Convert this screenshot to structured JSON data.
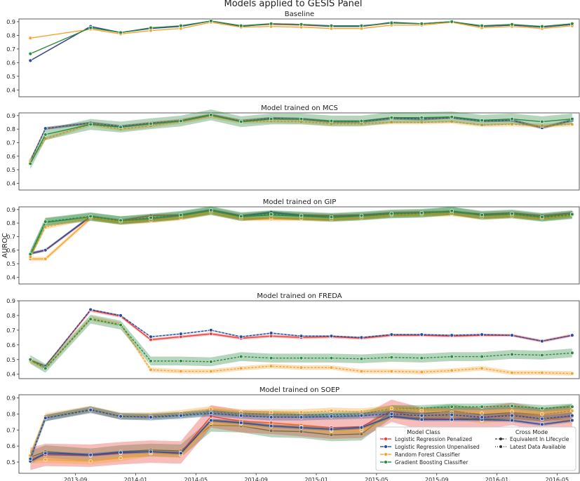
{
  "figure": {
    "title": "Models applied to GESIS Panel",
    "ylabel": "AUROC",
    "x_ticks": [
      "2013-09",
      "2014-01",
      "2014-05",
      "2014-09",
      "2015-01",
      "2015-05",
      "2015-09",
      "2016-01",
      "2016-05"
    ],
    "y_ticks": [
      "0.4",
      "0.5",
      "0.6",
      "0.7",
      "0.8",
      "0.9"
    ]
  },
  "legend": {
    "model_class_title": "Model Class",
    "cross_mode_title": "Cross Mode",
    "model_classes": [
      {
        "name": "Logistic Regression Penalized",
        "color": "#e8413c"
      },
      {
        "name": "Logistic Regression Unpenalised",
        "color": "#2a4d9b"
      },
      {
        "name": "Random Forest Classifier",
        "color": "#f5a331"
      },
      {
        "name": "Gradient Boosting Classifier",
        "color": "#2a8a3e"
      }
    ],
    "cross_modes": [
      "Equivalent In Lifecycle",
      "Latest Data Available"
    ]
  },
  "chart_data": [
    {
      "type": "line",
      "title": "Baseline",
      "ylim": [
        0.35,
        0.92
      ],
      "x": [
        "2013-06",
        "2013-10",
        "2013-12",
        "2014-02",
        "2014-04",
        "2014-06",
        "2014-08",
        "2014-10",
        "2014-12",
        "2015-02",
        "2015-04",
        "2015-06",
        "2015-08",
        "2015-10",
        "2015-12",
        "2016-02",
        "2016-04",
        "2016-06"
      ],
      "series": [
        {
          "model": "Logistic Regression Penalized",
          "mode": "solid",
          "values": [
            0.615,
            0.865,
            0.82,
            0.855,
            0.865,
            0.905,
            0.87,
            0.88,
            0.875,
            0.865,
            0.865,
            0.89,
            0.885,
            0.9,
            0.865,
            0.875,
            0.86,
            0.88
          ],
          "band": 0
        },
        {
          "model": "Logistic Regression Unpenalised",
          "mode": "solid",
          "values": [
            0.615,
            0.865,
            0.82,
            0.85,
            0.865,
            0.905,
            0.865,
            0.885,
            0.88,
            0.865,
            0.865,
            0.895,
            0.885,
            0.9,
            0.865,
            0.875,
            0.86,
            0.88
          ],
          "band": 0
        },
        {
          "model": "Random Forest Classifier",
          "mode": "solid",
          "values": [
            0.78,
            0.845,
            0.81,
            0.835,
            0.85,
            0.895,
            0.86,
            0.865,
            0.86,
            0.85,
            0.85,
            0.875,
            0.875,
            0.895,
            0.855,
            0.865,
            0.85,
            0.87
          ],
          "band": 0
        },
        {
          "model": "Gradient Boosting Classifier",
          "mode": "solid",
          "values": [
            0.665,
            0.855,
            0.82,
            0.855,
            0.87,
            0.905,
            0.87,
            0.885,
            0.88,
            0.87,
            0.87,
            0.89,
            0.885,
            0.9,
            0.87,
            0.88,
            0.865,
            0.885
          ],
          "band": 0
        }
      ]
    },
    {
      "type": "line",
      "title": "Model trained on MCS",
      "ylim": [
        0.35,
        0.92
      ],
      "x": [
        "2013-06",
        "2013-07",
        "2013-10",
        "2013-12",
        "2014-02",
        "2014-04",
        "2014-06",
        "2014-08",
        "2014-10",
        "2014-12",
        "2015-02",
        "2015-04",
        "2015-06",
        "2015-08",
        "2015-10",
        "2015-12",
        "2016-02",
        "2016-04",
        "2016-06"
      ],
      "series": [
        {
          "model": "Logistic Regression Penalized",
          "mode": "dashed",
          "values": [
            0.57,
            0.805,
            0.845,
            0.82,
            0.845,
            0.865,
            0.905,
            0.86,
            0.88,
            0.875,
            0.855,
            0.855,
            0.88,
            0.875,
            0.885,
            0.86,
            0.865,
            0.81,
            0.865
          ],
          "band": 0.01
        },
        {
          "model": "Logistic Regression Unpenalised",
          "mode": "dashed",
          "values": [
            0.565,
            0.805,
            0.845,
            0.82,
            0.84,
            0.86,
            0.905,
            0.86,
            0.88,
            0.875,
            0.855,
            0.855,
            0.88,
            0.875,
            0.885,
            0.86,
            0.865,
            0.81,
            0.865
          ],
          "band": 0.01
        },
        {
          "model": "Random Forest Classifier",
          "mode": "dashed",
          "values": [
            0.56,
            0.73,
            0.835,
            0.8,
            0.825,
            0.855,
            0.895,
            0.855,
            0.86,
            0.855,
            0.84,
            0.84,
            0.85,
            0.85,
            0.855,
            0.83,
            0.835,
            0.825,
            0.835
          ],
          "band": 0.015
        },
        {
          "model": "Gradient Boosting Classifier",
          "mode": "solid",
          "values": [
            0.545,
            0.76,
            0.835,
            0.815,
            0.84,
            0.86,
            0.905,
            0.855,
            0.875,
            0.875,
            0.86,
            0.86,
            0.885,
            0.885,
            0.89,
            0.865,
            0.875,
            0.855,
            0.875
          ],
          "band": 0.04
        }
      ]
    },
    {
      "type": "line",
      "title": "Model trained on GIP",
      "ylim": [
        0.35,
        0.92
      ],
      "x": [
        "2013-06",
        "2013-07",
        "2013-10",
        "2013-12",
        "2014-02",
        "2014-04",
        "2014-06",
        "2014-08",
        "2014-10",
        "2014-12",
        "2015-02",
        "2015-04",
        "2015-06",
        "2015-08",
        "2015-10",
        "2015-12",
        "2016-02",
        "2016-04",
        "2016-06"
      ],
      "series": [
        {
          "model": "Logistic Regression Penalized",
          "mode": "solid",
          "values": [
            0.575,
            0.6,
            0.845,
            0.82,
            0.855,
            0.86,
            0.895,
            0.855,
            0.875,
            0.86,
            0.855,
            0.86,
            0.875,
            0.88,
            0.885,
            0.865,
            0.875,
            0.855,
            0.875
          ],
          "band": 0.01
        },
        {
          "model": "Logistic Regression Unpenalised",
          "mode": "solid",
          "values": [
            0.575,
            0.6,
            0.85,
            0.815,
            0.83,
            0.855,
            0.895,
            0.85,
            0.88,
            0.855,
            0.845,
            0.855,
            0.87,
            0.875,
            0.88,
            0.86,
            0.865,
            0.845,
            0.87
          ],
          "band": 0.01
        },
        {
          "model": "Random Forest Classifier",
          "mode": "solid",
          "values": [
            0.535,
            0.535,
            0.835,
            0.8,
            0.815,
            0.835,
            0.875,
            0.83,
            0.83,
            0.83,
            0.825,
            0.835,
            0.855,
            0.86,
            0.865,
            0.84,
            0.85,
            0.83,
            0.855
          ],
          "band": 0.015
        },
        {
          "model": "Gradient Boosting Classifier",
          "mode": "solid",
          "values": [
            0.565,
            0.805,
            0.845,
            0.82,
            0.835,
            0.855,
            0.89,
            0.845,
            0.86,
            0.85,
            0.84,
            0.85,
            0.865,
            0.87,
            0.89,
            0.855,
            0.865,
            0.84,
            0.86
          ],
          "band": 0.03
        },
        {
          "model": "Random Forest Classifier",
          "mode": "dashed",
          "values": [
            0.55,
            0.77,
            0.84,
            0.81,
            0.82,
            0.84,
            0.88,
            0.835,
            0.84,
            0.835,
            0.83,
            0.84,
            0.86,
            0.865,
            0.87,
            0.845,
            0.855,
            0.835,
            0.86
          ],
          "band": 0.015
        },
        {
          "model": "Gradient Boosting Classifier",
          "mode": "dashed",
          "values": [
            0.57,
            0.81,
            0.85,
            0.82,
            0.84,
            0.86,
            0.895,
            0.85,
            0.865,
            0.855,
            0.845,
            0.855,
            0.87,
            0.875,
            0.89,
            0.86,
            0.87,
            0.845,
            0.865
          ],
          "band": 0.03
        }
      ]
    },
    {
      "type": "line",
      "title": "Model trained on FREDA",
      "ylim": [
        0.37,
        0.9
      ],
      "x": [
        "2013-06",
        "2013-07",
        "2013-10",
        "2013-12",
        "2014-02",
        "2014-04",
        "2014-06",
        "2014-08",
        "2014-10",
        "2014-12",
        "2015-02",
        "2015-04",
        "2015-06",
        "2015-08",
        "2015-10",
        "2015-12",
        "2016-02",
        "2016-04",
        "2016-06"
      ],
      "series": [
        {
          "model": "Logistic Regression Penalized",
          "mode": "solid",
          "values": [
            0.495,
            0.455,
            0.835,
            0.795,
            0.635,
            0.655,
            0.675,
            0.645,
            0.66,
            0.65,
            0.655,
            0.645,
            0.665,
            0.665,
            0.66,
            0.665,
            0.665,
            0.625,
            0.665
          ],
          "band": 0.01
        },
        {
          "model": "Logistic Regression Unpenalised",
          "mode": "dashed",
          "values": [
            0.495,
            0.455,
            0.84,
            0.8,
            0.655,
            0.675,
            0.7,
            0.655,
            0.68,
            0.66,
            0.66,
            0.65,
            0.67,
            0.67,
            0.665,
            0.67,
            0.665,
            0.625,
            0.665
          ],
          "band": 0.005
        },
        {
          "model": "Random Forest Classifier",
          "mode": "dashed",
          "values": [
            0.49,
            0.44,
            0.78,
            0.74,
            0.43,
            0.42,
            0.42,
            0.44,
            0.455,
            0.445,
            0.445,
            0.42,
            0.42,
            0.415,
            0.425,
            0.44,
            0.41,
            0.41,
            0.405
          ],
          "band": 0.015
        },
        {
          "model": "Gradient Boosting Classifier",
          "mode": "dashed",
          "values": [
            0.5,
            0.44,
            0.775,
            0.735,
            0.49,
            0.49,
            0.485,
            0.52,
            0.51,
            0.51,
            0.51,
            0.505,
            0.515,
            0.51,
            0.52,
            0.52,
            0.535,
            0.53,
            0.545
          ],
          "band": 0.03
        }
      ]
    },
    {
      "type": "line",
      "title": "Model trained on SOEP",
      "ylim": [
        0.43,
        0.92
      ],
      "x": [
        "2013-06",
        "2013-07",
        "2013-10",
        "2013-12",
        "2014-02",
        "2014-04",
        "2014-06",
        "2014-08",
        "2014-10",
        "2014-12",
        "2015-02",
        "2015-04",
        "2015-06",
        "2015-08",
        "2015-10",
        "2015-12",
        "2016-02",
        "2016-04",
        "2016-06"
      ],
      "series": [
        {
          "model": "Gradient Boosting Classifier",
          "mode": "solid",
          "values": [
            0.53,
            0.565,
            0.545,
            0.565,
            0.575,
            0.57,
            0.73,
            0.725,
            0.695,
            0.69,
            0.67,
            0.675,
            0.815,
            0.8,
            0.82,
            0.795,
            0.81,
            0.795,
            0.82
          ],
          "band": 0.04
        },
        {
          "model": "Logistic Regression Penalized",
          "mode": "solid",
          "values": [
            0.52,
            0.545,
            0.54,
            0.555,
            0.565,
            0.56,
            0.785,
            0.755,
            0.745,
            0.73,
            0.715,
            0.72,
            0.82,
            0.77,
            0.77,
            0.775,
            0.8,
            0.765,
            0.785
          ],
          "band": 0.07
        },
        {
          "model": "Random Forest Classifier",
          "mode": "solid",
          "values": [
            0.51,
            0.515,
            0.505,
            0.525,
            0.555,
            0.545,
            0.745,
            0.74,
            0.725,
            0.72,
            0.695,
            0.7,
            0.79,
            0.78,
            0.79,
            0.76,
            0.78,
            0.77,
            0.76
          ],
          "band": 0.02
        },
        {
          "model": "Logistic Regression Unpenalised",
          "mode": "solid",
          "values": [
            0.505,
            0.555,
            0.545,
            0.56,
            0.565,
            0.555,
            0.76,
            0.745,
            0.725,
            0.715,
            0.705,
            0.715,
            0.785,
            0.765,
            0.765,
            0.765,
            0.76,
            0.735,
            0.76
          ],
          "band": 0.01
        },
        {
          "model": "Gradient Boosting Classifier",
          "mode": "dashed",
          "values": [
            0.54,
            0.775,
            0.83,
            0.785,
            0.785,
            0.795,
            0.815,
            0.8,
            0.8,
            0.795,
            0.795,
            0.8,
            0.835,
            0.835,
            0.845,
            0.845,
            0.85,
            0.835,
            0.845
          ],
          "band": 0.02
        },
        {
          "model": "Random Forest Classifier",
          "mode": "dashed",
          "values": [
            0.54,
            0.785,
            0.83,
            0.79,
            0.79,
            0.805,
            0.83,
            0.81,
            0.81,
            0.81,
            0.82,
            0.815,
            0.835,
            0.82,
            0.81,
            0.805,
            0.815,
            0.8,
            0.82
          ],
          "band": 0.02
        },
        {
          "model": "Logistic Regression Unpenalised",
          "mode": "dashed",
          "values": [
            0.52,
            0.775,
            0.825,
            0.785,
            0.78,
            0.79,
            0.805,
            0.79,
            0.78,
            0.78,
            0.785,
            0.79,
            0.8,
            0.79,
            0.795,
            0.78,
            0.79,
            0.77,
            0.79
          ],
          "band": 0.02
        }
      ]
    }
  ]
}
